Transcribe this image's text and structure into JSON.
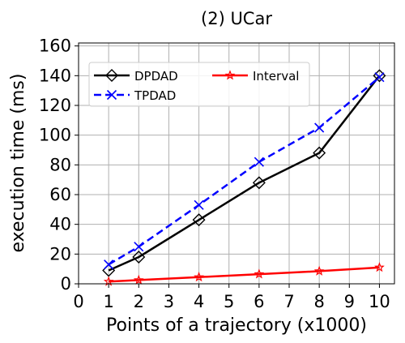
{
  "chart_data": {
    "type": "line",
    "title": "(2) UCar",
    "xlabel": "Points of a trajectory (x1000)",
    "ylabel": "execution time (ms)",
    "xlim": [
      0,
      10.5
    ],
    "ylim": [
      0,
      162
    ],
    "xticks": [
      "0",
      "1",
      "2",
      "3",
      "4",
      "5",
      "6",
      "7",
      "8",
      "9",
      "10"
    ],
    "yticks": [
      "0",
      "20",
      "40",
      "60",
      "80",
      "100",
      "120",
      "140",
      "160"
    ],
    "grid": true,
    "legend_position": "upper-left",
    "x": [
      1,
      2,
      4,
      6,
      8,
      10
    ],
    "series": [
      {
        "name": "DPDAD",
        "values": [
          9,
          18,
          43,
          68,
          88,
          140
        ],
        "color": "#000000",
        "marker": "diamond",
        "line": "solid"
      },
      {
        "name": "TPDAD",
        "values": [
          13,
          25,
          53,
          82,
          105,
          139
        ],
        "color": "#0000ff",
        "marker": "x",
        "line": "dashed"
      },
      {
        "name": "Interval",
        "values": [
          1.5,
          2.5,
          4.5,
          6.5,
          8.5,
          11
        ],
        "color": "#ff0000",
        "marker": "star",
        "line": "solid"
      }
    ]
  }
}
